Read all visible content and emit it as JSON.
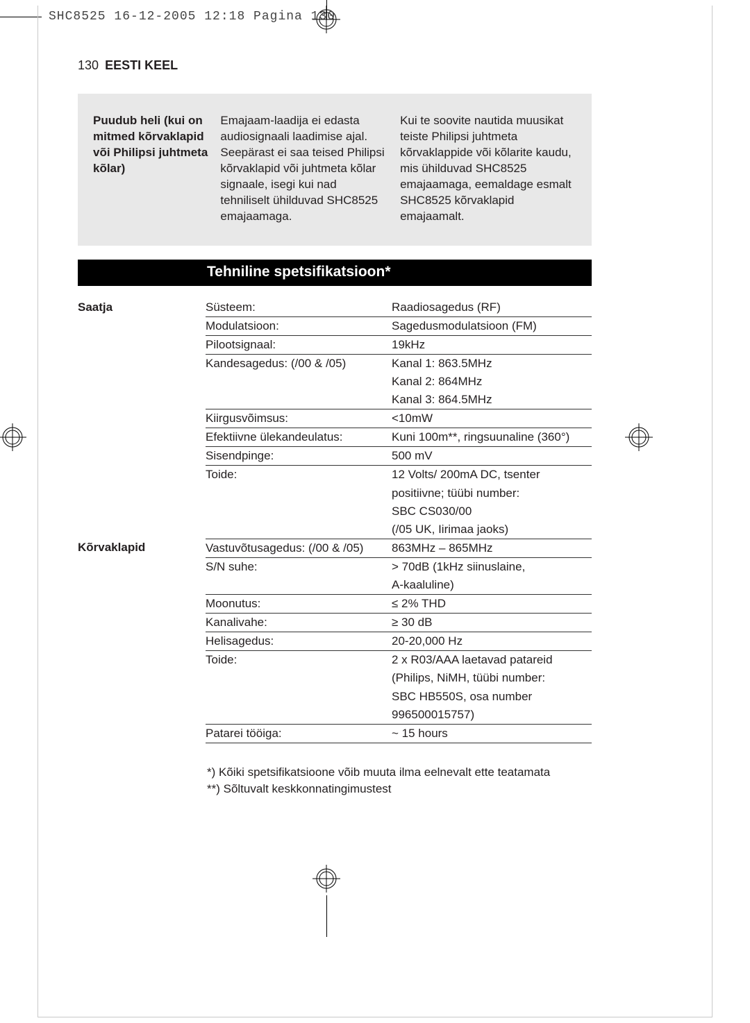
{
  "print_header": "SHC8525  16-12-2005  12:18  Pagina 130",
  "page_number": "130",
  "language_label": "EESTI KEEL",
  "troubleshoot": {
    "title": "Puudub heli (kui on mitmed kõrvaklapid või Philipsi juhtmeta kõlar)",
    "col2": "Emajaam-laadija ei edasta audiosignaali laadimise ajal. Seepärast ei saa teised Philipsi kõrvaklapid või juhtmeta kõlar signaale, isegi kui nad tehniliselt ühilduvad SHC8525 emajaamaga.",
    "col3": "Kui te soovite nautida muusikat teiste Philipsi juhtmeta kõrvaklappide või kõlarite kaudu, mis ühilduvad SHC8525 emajaamaga, eemaldage esmalt SHC8525 kõrvaklapid emajaamalt."
  },
  "section_title": "Tehniline spetsifikatsioon*",
  "labels": {
    "saatja": "Saatja",
    "korvaklapid": "Kõrvaklapid"
  },
  "specs": {
    "saatja": [
      {
        "p": "Süsteem:",
        "v": "Raadiosagedus  (RF)",
        "rule": true
      },
      {
        "p": "Modulatsioon:",
        "v": "Sagedusmodulatsioon (FM)",
        "rule": true
      },
      {
        "p": "Pilootsignaal:",
        "v": "19kHz",
        "rule": true
      },
      {
        "p": "Kandesagedus: (/00 & /05)",
        "v": "Kanal 1: 863.5MHz",
        "rule": false
      },
      {
        "p": "",
        "v": "Kanal 2: 864MHz",
        "rule": false
      },
      {
        "p": "",
        "v": "Kanal 3: 864.5MHz",
        "rule": true
      },
      {
        "p": "Kiirgusvõimsus:",
        "v": "<10mW",
        "rule": true
      },
      {
        "p": "Efektiivne ülekandeulatus:",
        "v": "Kuni 100m**, ringsuunaline (360°)",
        "rule": true
      },
      {
        "p": "Sisendpinge:",
        "v": "500 mV",
        "rule": true
      },
      {
        "p": "Toide:",
        "v": "12 Volts/ 200mA DC, tsenter",
        "rule": false
      },
      {
        "p": "",
        "v": "positiivne; tüübi number:",
        "rule": false
      },
      {
        "p": "",
        "v": "SBC CS030/00",
        "rule": false
      },
      {
        "p": "",
        "v": "(/05 UK, Iirimaa jaoks)",
        "rule": true
      }
    ],
    "korvaklapid": [
      {
        "p": "Vastuvõtusagedus: (/00 & /05)",
        "v": "863MHz – 865MHz",
        "rule": true
      },
      {
        "p": "S/N suhe:",
        "v": "> 70dB (1kHz siinuslaine,",
        "rule": false
      },
      {
        "p": "",
        "v": "A-kaaluline)",
        "rule": true
      },
      {
        "p": "Moonutus:",
        "v": "≤ 2% THD",
        "rule": true
      },
      {
        "p": "Kanalivahe:",
        "v": "≥ 30 dB",
        "rule": true
      },
      {
        "p": "Helisagedus:",
        "v": "20-20,000 Hz",
        "rule": true
      },
      {
        "p": "Toide:",
        "v": "2 x R03/AAA laetavad patareid",
        "rule": false
      },
      {
        "p": "",
        "v": "(Philips, NiMH, tüübi number:",
        "rule": false
      },
      {
        "p": "",
        "v": "SBC HB550S, osa number",
        "rule": false
      },
      {
        "p": "",
        "v": "996500015757)",
        "rule": true
      },
      {
        "p": "Patarei tööiga:",
        "v": "~ 15 hours",
        "rule": true
      }
    ]
  },
  "footnotes": {
    "f1": "*)  Kõiki spetsifikatsioone võib muuta ilma eelnevalt ette teatamata",
    "f2": "**) Sõltuvalt keskkonnatingimustest"
  },
  "colors": {
    "gray_block": "#e8e8e8",
    "text": "#231f20",
    "bar_bg": "#000000",
    "bar_fg": "#ffffff"
  }
}
